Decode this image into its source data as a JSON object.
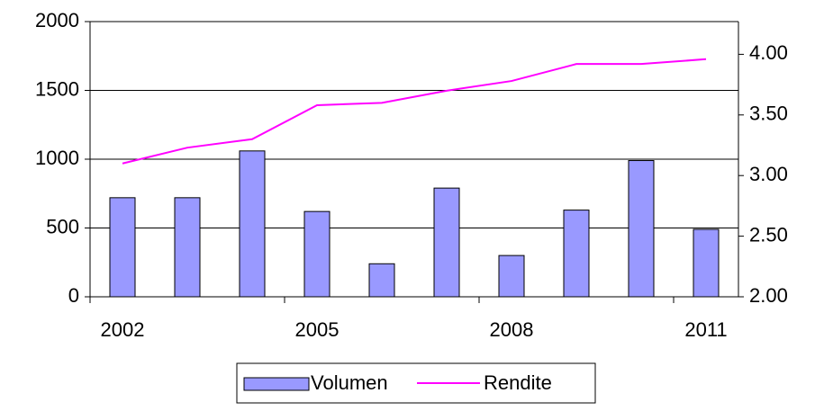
{
  "chart_data": {
    "type": "bar-line",
    "categories": [
      "2002",
      null,
      null,
      "2005",
      null,
      null,
      "2008",
      null,
      null,
      "2011"
    ],
    "series": [
      {
        "name": "Volumen",
        "type": "bar",
        "color": "#9999ff",
        "values": [
          720,
          720,
          1060,
          620,
          240,
          790,
          300,
          630,
          990,
          490
        ]
      },
      {
        "name": "Rendite",
        "type": "line",
        "color": "#ff00ff",
        "axis": "y2",
        "values": [
          3.1,
          3.23,
          3.3,
          3.58,
          3.6,
          3.7,
          3.78,
          3.92,
          3.92,
          3.96
        ]
      }
    ],
    "ylim": [
      0,
      2000
    ],
    "yticks": [
      0,
      500,
      1000,
      1500,
      2000
    ],
    "y2lim": [
      2,
      4.27
    ],
    "y2ticks": [
      {
        "value": 2,
        "label": "2.00"
      },
      {
        "value": 2.5,
        "label": "2.50"
      },
      {
        "value": 3,
        "label": "3.00"
      },
      {
        "value": 3.5,
        "label": "3.50"
      },
      {
        "value": 4,
        "label": "4.00"
      }
    ],
    "grid": true,
    "legend": "bottom"
  }
}
